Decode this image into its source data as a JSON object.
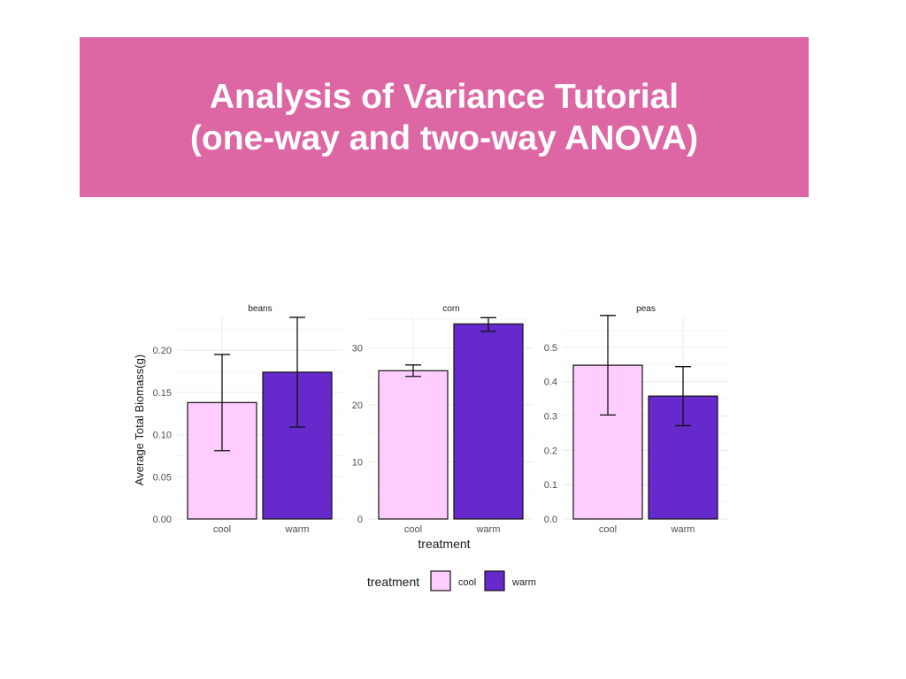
{
  "slide": {
    "title_line1": "Analysis of Variance Tutorial",
    "title_line2": "(one-way and two-way ANOVA)",
    "banner_color": "#dd67a4"
  },
  "chart_data": {
    "type": "bar",
    "faceted": true,
    "xlabel": "treatment",
    "ylabel": "Average Total Biomass(g)",
    "categories": [
      "cool",
      "warm"
    ],
    "colors": {
      "cool": "#ffccff",
      "warm": "#6529cc"
    },
    "legend": {
      "title": "treatment",
      "position": "bottom",
      "entries": [
        "cool",
        "warm"
      ]
    },
    "grid": true,
    "panels": [
      {
        "name": "beans",
        "ylim": [
          0,
          0.24
        ],
        "ticks": [
          0,
          0.05,
          0.1,
          0.15,
          0.2
        ],
        "tick_labels": [
          "0.00",
          "0.05",
          "0.10",
          "0.15",
          "0.20"
        ],
        "values": [
          0.138,
          0.174
        ],
        "error_low": [
          0.081,
          0.109
        ],
        "error_high": [
          0.195,
          0.239
        ]
      },
      {
        "name": "corn",
        "ylim": [
          0,
          35.5
        ],
        "ticks": [
          0,
          10,
          20,
          30
        ],
        "tick_labels": [
          "0",
          "10",
          "20",
          "30"
        ],
        "values": [
          26.0,
          34.2
        ],
        "error_low": [
          25.0,
          32.9
        ],
        "error_high": [
          27.0,
          35.3
        ]
      },
      {
        "name": "peas",
        "ylim": [
          0,
          0.59
        ],
        "ticks": [
          0,
          0.1,
          0.2,
          0.3,
          0.4,
          0.5
        ],
        "tick_labels": [
          "0.0",
          "0.1",
          "0.2",
          "0.3",
          "0.4",
          "0.5"
        ],
        "values": [
          0.448,
          0.358
        ],
        "error_low": [
          0.303,
          0.272
        ],
        "error_high": [
          0.593,
          0.444
        ]
      }
    ]
  }
}
